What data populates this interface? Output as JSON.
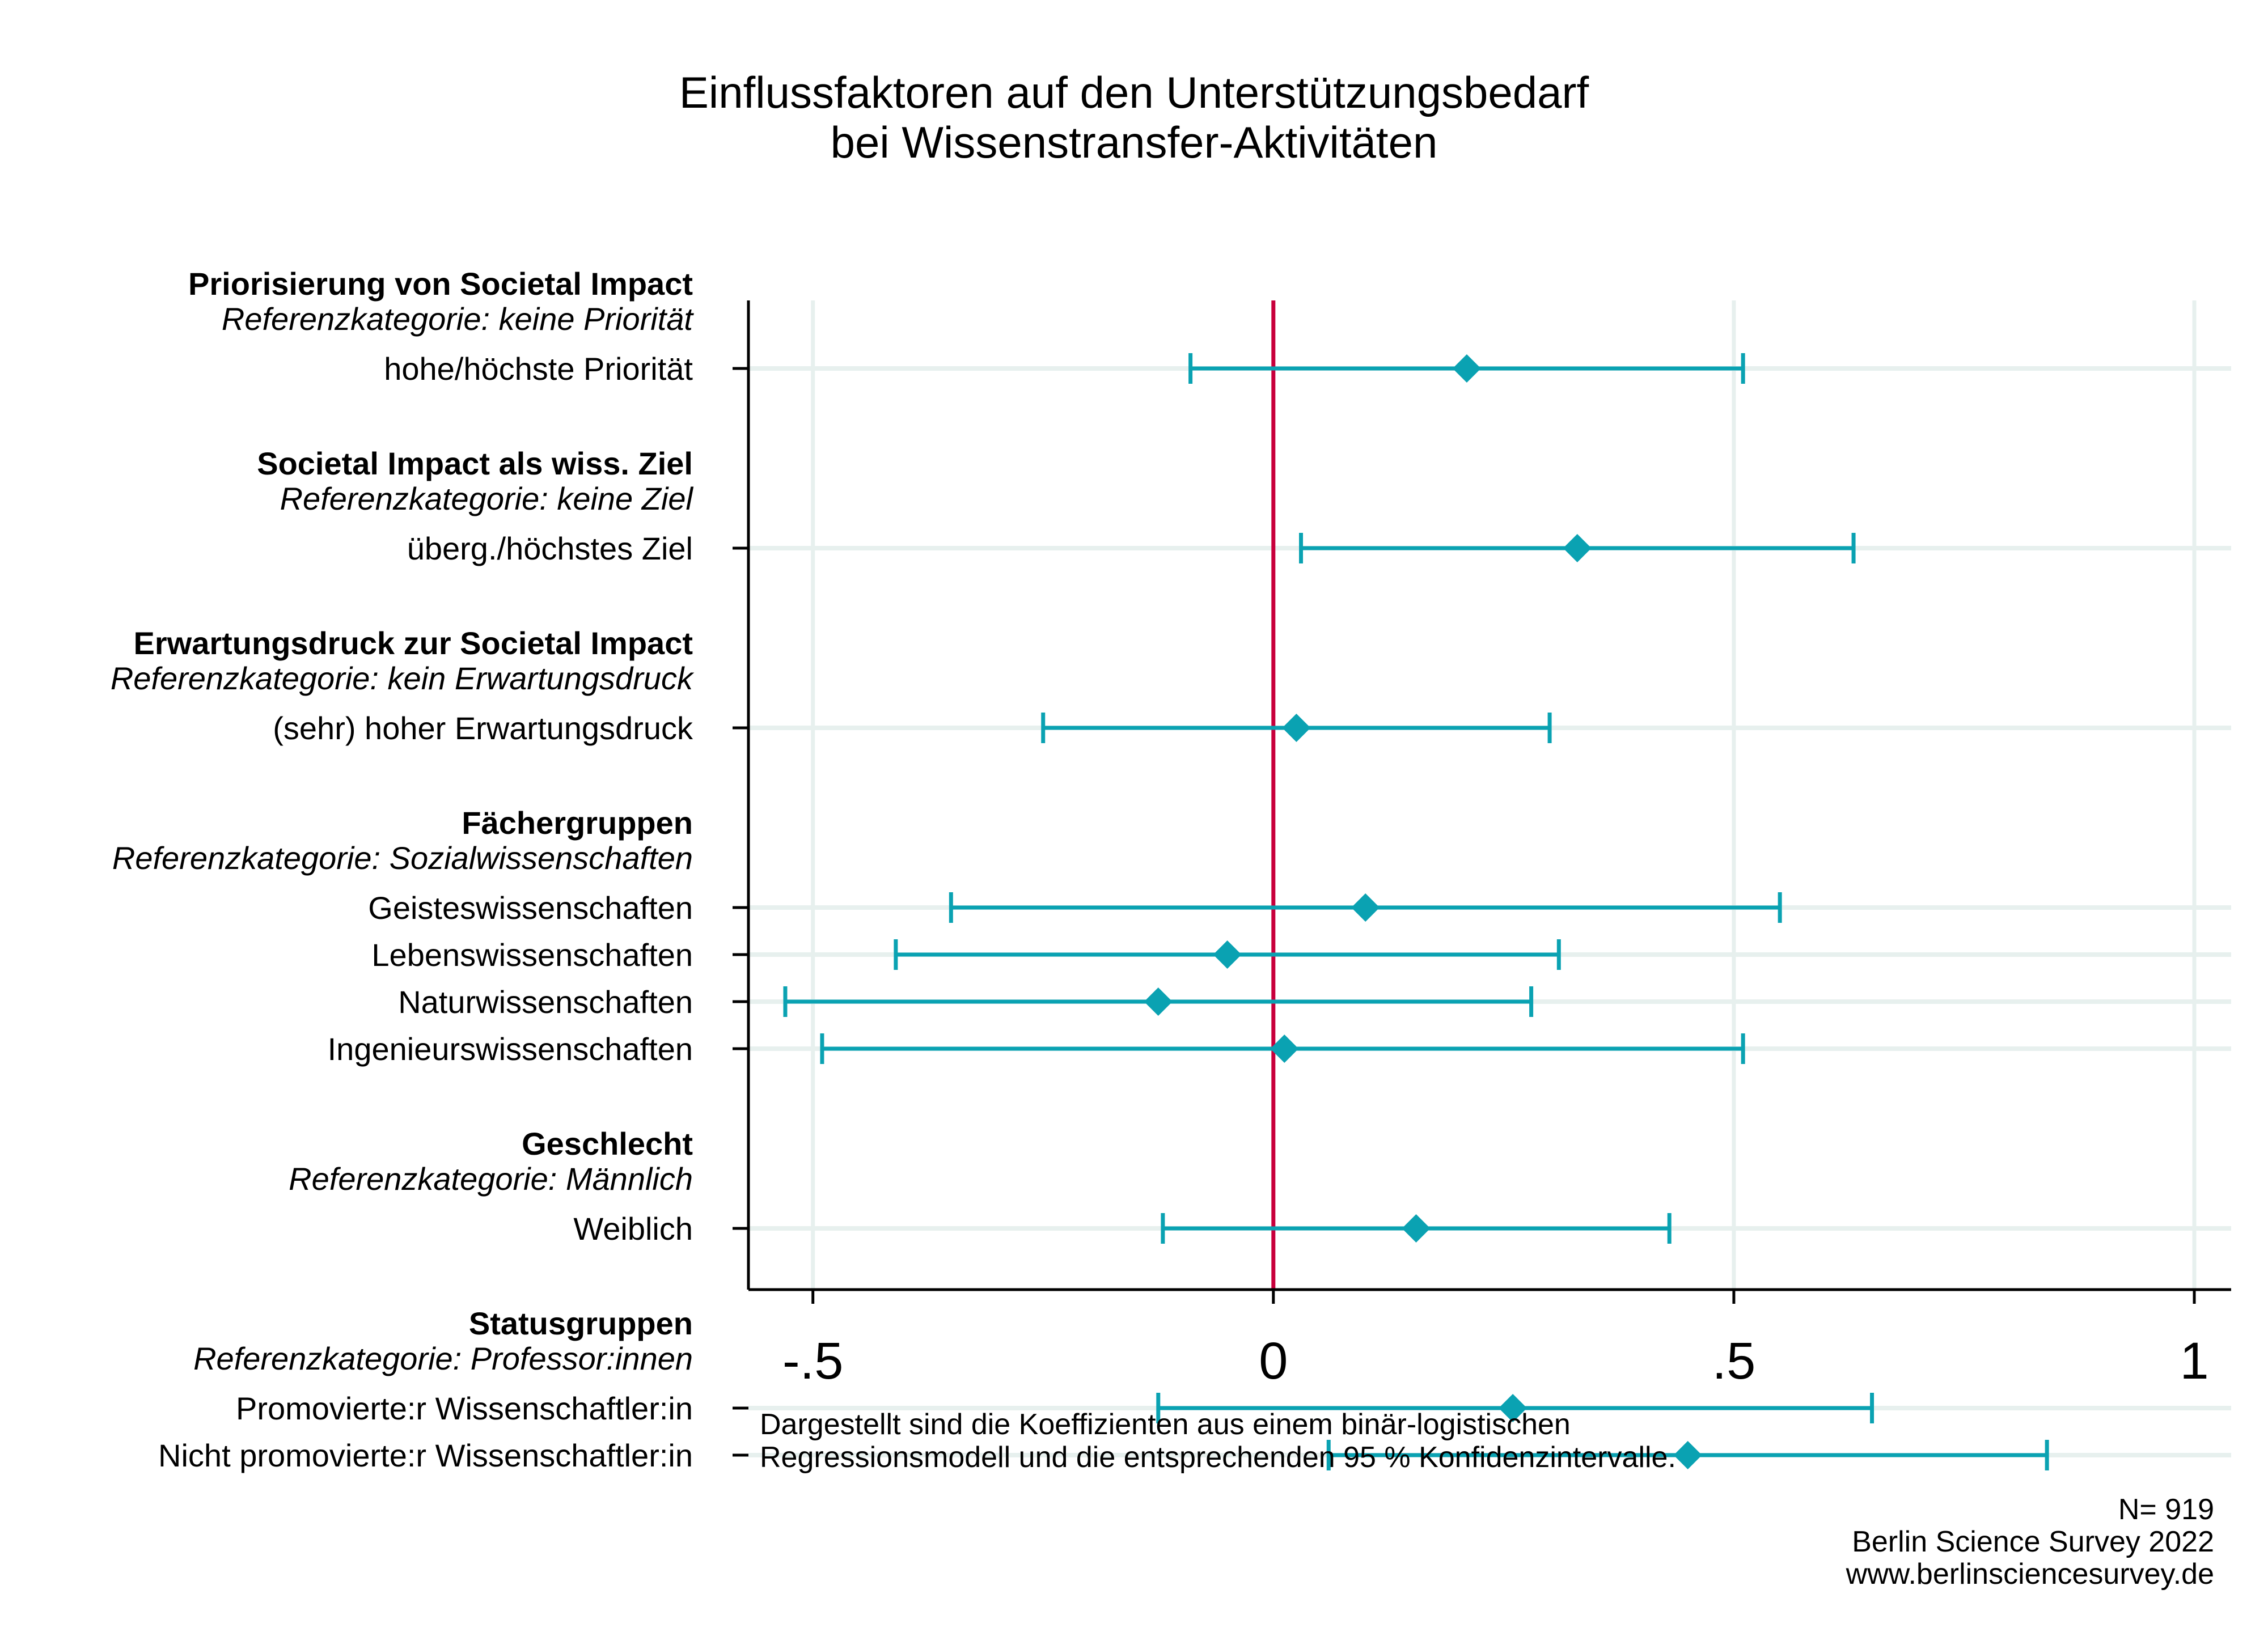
{
  "chart_data": {
    "type": "scatter",
    "title": [
      "Einflussfaktoren auf den Unterstützungsbedarf",
      "bei Wissenstransfer-Aktivitäten"
    ],
    "xlim": [
      -0.57,
      1.04
    ],
    "xticks": [
      {
        "value": -0.5,
        "label": "-.5"
      },
      {
        "value": 0,
        "label": "0"
      },
      {
        "value": 0.5,
        "label": ".5"
      },
      {
        "value": 1,
        "label": "1"
      }
    ],
    "grid": true,
    "reference_line": 0,
    "colors": {
      "point": "#0aa2b2",
      "reference": "#c8003c",
      "grid": "#e7f0ee",
      "axis": "#000000"
    },
    "groups": [
      {
        "heading": "Priorisierung von Societal Impact",
        "reference": "Referenzkategorie: keine Priorität",
        "items": [
          {
            "label": "hohe/höchste Priorität",
            "coef": 0.21,
            "lo": -0.09,
            "hi": 0.51
          }
        ]
      },
      {
        "heading": "Societal Impact als wiss. Ziel",
        "reference": "Referenzkategorie: keine Ziel",
        "items": [
          {
            "label": "überg./höchstes Ziel",
            "coef": 0.33,
            "lo": 0.03,
            "hi": 0.63
          }
        ]
      },
      {
        "heading": "Erwartungsdruck zur Societal Impact",
        "reference": "Referenzkategorie: kein Erwartungsdruck",
        "items": [
          {
            "label": "(sehr) hoher Erwartungsdruck",
            "coef": 0.025,
            "lo": -0.25,
            "hi": 0.3
          }
        ]
      },
      {
        "heading": "Fächergruppen",
        "reference": "Referenzkategorie: Sozialwissenschaften",
        "items": [
          {
            "label": "Geisteswissenschaften",
            "coef": 0.1,
            "lo": -0.35,
            "hi": 0.55
          },
          {
            "label": "Lebenswissenschaften",
            "coef": -0.05,
            "lo": -0.41,
            "hi": 0.31
          },
          {
            "label": "Naturwissenschaften",
            "coef": -0.125,
            "lo": -0.53,
            "hi": 0.28
          },
          {
            "label": "Ingenieurswissenschaften",
            "coef": 0.012,
            "lo": -0.49,
            "hi": 0.51
          }
        ]
      },
      {
        "heading": "Geschlecht",
        "reference": "Referenzkategorie: Männlich",
        "items": [
          {
            "label": "Weiblich",
            "coef": 0.155,
            "lo": -0.12,
            "hi": 0.43
          }
        ]
      },
      {
        "heading": "Statusgruppen",
        "reference": "Referenzkategorie: Professor:innen",
        "items": [
          {
            "label": "Promovierte:r Wissenschaftler:in",
            "coef": 0.26,
            "lo": -0.125,
            "hi": 0.65
          },
          {
            "label": "Nicht promovierte:r Wissenschaftler:in",
            "coef": 0.45,
            "lo": 0.06,
            "hi": 0.84
          }
        ]
      }
    ],
    "note": [
      "Dargestellt sind die Koeffizienten aus einem binär-logistischen",
      "Regressionsmodell und die entsprechenden 95 % Konfidenzintervalle."
    ],
    "source": [
      "N= 919",
      "Berlin Science Survey 2022",
      "www.berlinsciencesurvey.de"
    ]
  }
}
